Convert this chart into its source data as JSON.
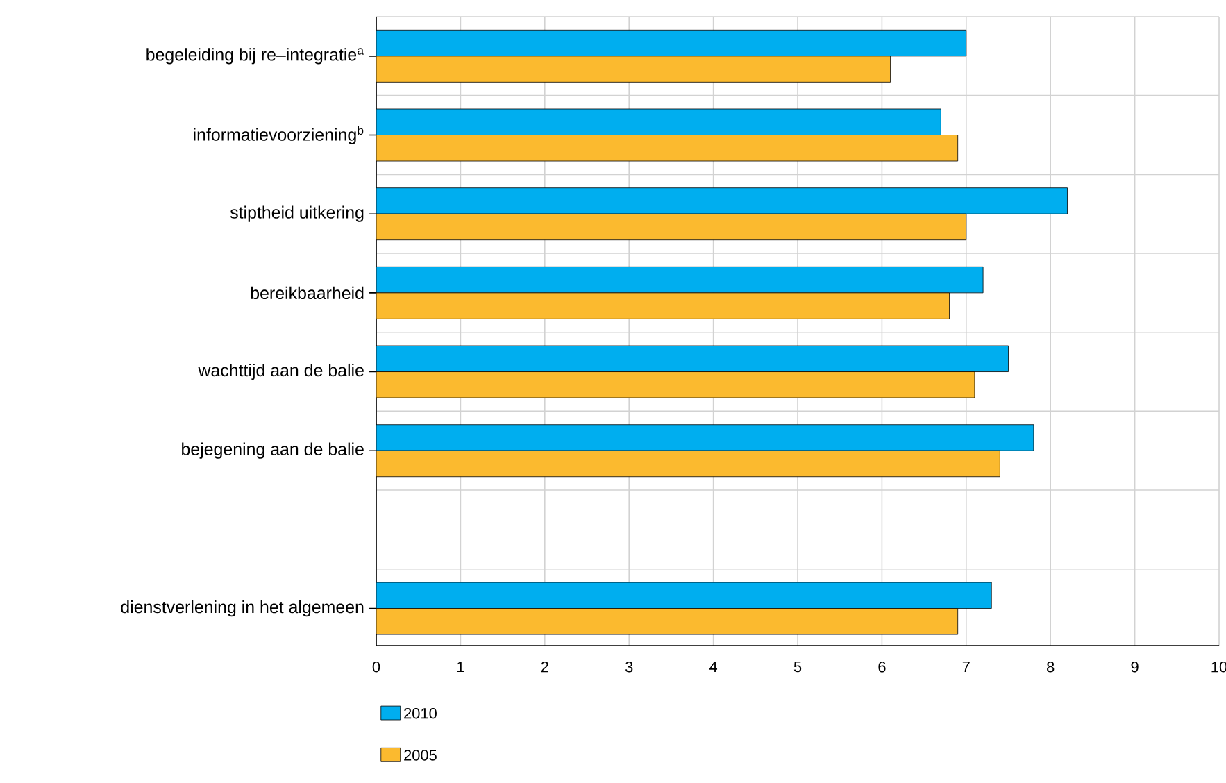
{
  "chart_data": {
    "type": "bar",
    "orientation": "horizontal",
    "categories": [
      "begeleiding bij re–integratie$^{a}$",
      "informatievoorziening$^{b}$",
      "stiptheid uitkering",
      "bereikbaarheid",
      "wachttijd aan de balie",
      "bejegening aan de balie",
      null,
      "dienstverlening in het algemeen"
    ],
    "series": [
      {
        "name": "2010",
        "color": "#00aeef",
        "values": [
          7.0,
          6.7,
          8.2,
          7.2,
          7.5,
          7.8,
          null,
          7.3
        ]
      },
      {
        "name": "2005",
        "color": "#fbba2f",
        "values": [
          6.1,
          6.9,
          7.0,
          6.8,
          7.1,
          7.4,
          null,
          6.9
        ]
      }
    ],
    "xlim": [
      0,
      10
    ],
    "xticks": [
      0,
      1,
      2,
      3,
      4,
      5,
      6,
      7,
      8,
      9,
      10
    ],
    "grid": true,
    "legend": "bottom left"
  }
}
